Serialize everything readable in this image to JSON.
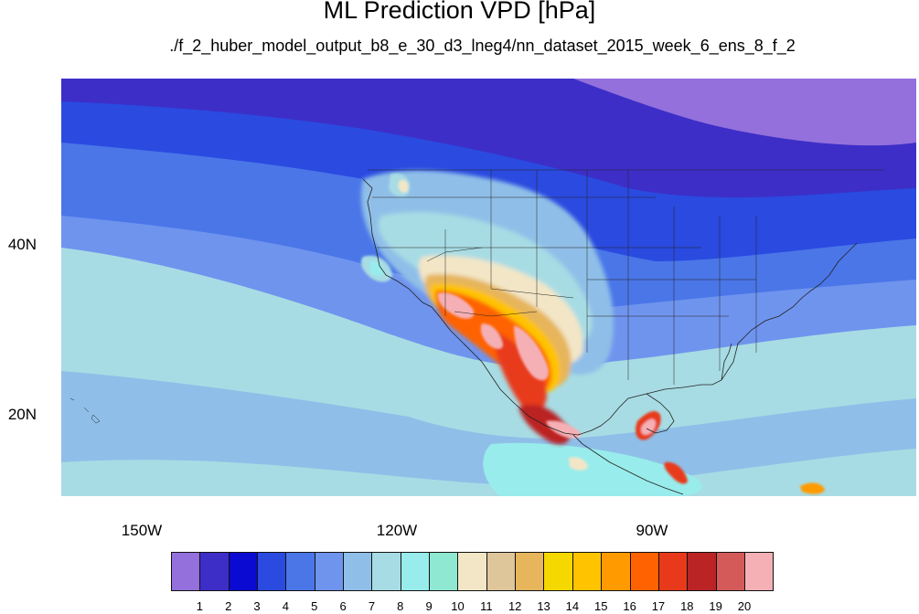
{
  "header": {
    "title": "ML Prediction VPD [hPa]",
    "subtitle": "./f_2_huber_model_output_b8_e_30_d3_lneg4/nn_dataset_2015_week_6_ens_8_f_2"
  },
  "map": {
    "lat_labels": [
      "40N",
      "20N"
    ],
    "lon_labels": [
      "150W",
      "120W",
      "90W"
    ]
  },
  "colorbar": {
    "labels": [
      "1",
      "2",
      "3",
      "4",
      "5",
      "6",
      "7",
      "8",
      "9",
      "10",
      "11",
      "12",
      "13",
      "14",
      "15",
      "16",
      "17",
      "18",
      "19",
      "20"
    ],
    "colors": [
      "#9370db",
      "#3d2ec8",
      "#0a0ad2",
      "#2a4ae0",
      "#4a76e8",
      "#6f94ee",
      "#8fbfe8",
      "#a8dce4",
      "#98ecec",
      "#8ee8d2",
      "#f2e6c6",
      "#dec59a",
      "#e6b55c",
      "#f5d800",
      "#ffc300",
      "#ff9a00",
      "#ff6200",
      "#e83a1a",
      "#bb2424",
      "#d45a5a",
      "#f5b0b5"
    ]
  }
}
